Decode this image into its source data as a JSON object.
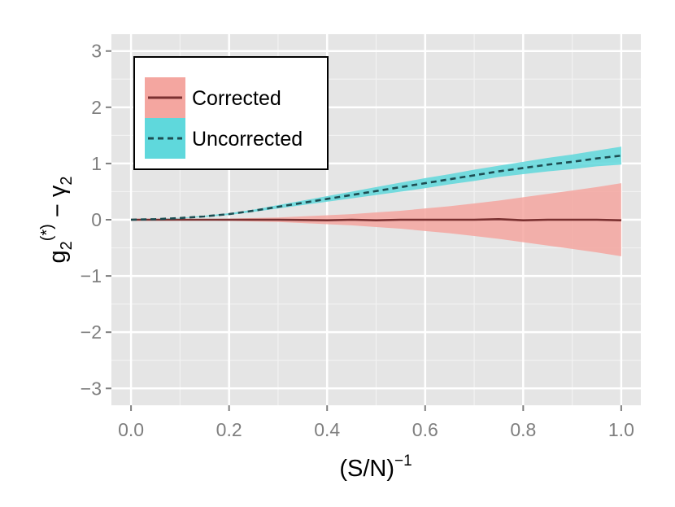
{
  "chart_data": {
    "type": "area",
    "title": "",
    "xlabel_base": "(S/N)",
    "xlabel_sup": "−1",
    "ylabel": {
      "g": "g",
      "g_sub": "2",
      "g_sup": "(*)",
      "minus": " − ",
      "gamma": "γ",
      "gamma_sub": "2"
    },
    "xlim": [
      -0.04,
      1.04
    ],
    "ylim": [
      -3.3,
      3.3
    ],
    "x_ticks": [
      0.0,
      0.2,
      0.4,
      0.6,
      0.8,
      1.0
    ],
    "x_tick_labels": [
      "0.0",
      "0.2",
      "0.4",
      "0.6",
      "0.8",
      "1.0"
    ],
    "y_ticks": [
      -3,
      -2,
      -1,
      0,
      1,
      2,
      3
    ],
    "y_tick_labels": [
      "−3",
      "−2",
      "−1",
      "0",
      "1",
      "2",
      "3"
    ],
    "grid": true,
    "legend_position": "top-left",
    "x": [
      0.0,
      0.05,
      0.1,
      0.15,
      0.2,
      0.25,
      0.3,
      0.35,
      0.4,
      0.45,
      0.5,
      0.55,
      0.6,
      0.65,
      0.7,
      0.75,
      0.8,
      0.85,
      0.9,
      0.95,
      1.0
    ],
    "series": [
      {
        "name": "Corrected",
        "line_style": "solid",
        "line_color": "#7a3030",
        "fill_color": "#f4a6a0",
        "y": [
          0.0,
          0.0,
          0.0,
          0.0,
          0.0,
          0.0,
          0.0,
          -0.005,
          -0.01,
          0.0,
          -0.01,
          0.0,
          0.0,
          0.0,
          0.0,
          0.01,
          -0.01,
          0.0,
          0.0,
          0.0,
          -0.01
        ],
        "upper": [
          0.0,
          0.0,
          0.005,
          0.01,
          0.02,
          0.03,
          0.04,
          0.06,
          0.08,
          0.1,
          0.13,
          0.16,
          0.2,
          0.24,
          0.29,
          0.34,
          0.4,
          0.46,
          0.52,
          0.58,
          0.65
        ],
        "lower": [
          0.0,
          0.0,
          -0.005,
          -0.01,
          -0.02,
          -0.03,
          -0.04,
          -0.06,
          -0.08,
          -0.1,
          -0.13,
          -0.16,
          -0.2,
          -0.24,
          -0.29,
          -0.34,
          -0.4,
          -0.46,
          -0.52,
          -0.58,
          -0.65
        ]
      },
      {
        "name": "Uncorrected",
        "line_style": "dashed",
        "line_color": "#1d4d52",
        "fill_color": "#5fd8dc",
        "y": [
          0.0,
          0.01,
          0.03,
          0.06,
          0.1,
          0.16,
          0.23,
          0.3,
          0.37,
          0.44,
          0.51,
          0.58,
          0.65,
          0.72,
          0.79,
          0.86,
          0.92,
          0.98,
          1.03,
          1.09,
          1.14
        ],
        "upper": [
          0.0,
          0.012,
          0.035,
          0.07,
          0.115,
          0.18,
          0.26,
          0.34,
          0.42,
          0.5,
          0.58,
          0.66,
          0.74,
          0.81,
          0.89,
          0.96,
          1.03,
          1.1,
          1.16,
          1.23,
          1.3
        ],
        "lower": [
          0.0,
          0.008,
          0.025,
          0.05,
          0.085,
          0.14,
          0.2,
          0.26,
          0.32,
          0.38,
          0.44,
          0.5,
          0.56,
          0.63,
          0.69,
          0.76,
          0.81,
          0.86,
          0.9,
          0.95,
          0.98
        ]
      }
    ]
  }
}
